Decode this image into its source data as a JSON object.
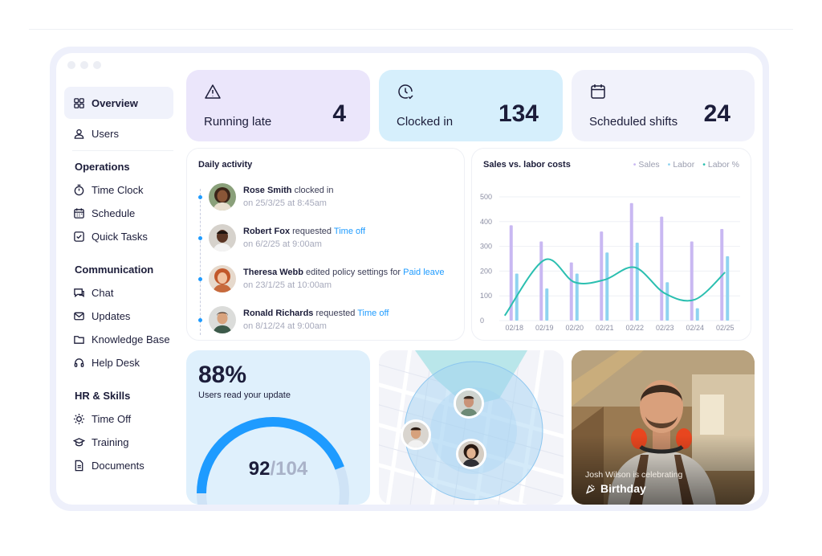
{
  "sidebar": {
    "top_items": [
      {
        "label": "Overview",
        "icon": "grid-icon"
      },
      {
        "label": "Users",
        "icon": "user-icon"
      }
    ],
    "sections": [
      {
        "title": "Operations",
        "items": [
          {
            "label": "Time Clock",
            "icon": "stopwatch-icon"
          },
          {
            "label": "Schedule",
            "icon": "calendar-icon"
          },
          {
            "label": "Quick Tasks",
            "icon": "checkbox-icon"
          }
        ]
      },
      {
        "title": "Communication",
        "items": [
          {
            "label": "Chat",
            "icon": "chat-icon"
          },
          {
            "label": "Updates",
            "icon": "mail-icon"
          },
          {
            "label": "Knowledge Base",
            "icon": "folder-icon"
          },
          {
            "label": "Help Desk",
            "icon": "headset-icon"
          }
        ]
      },
      {
        "title": "HR & Skills",
        "items": [
          {
            "label": "Time Off",
            "icon": "sun-icon"
          },
          {
            "label": "Training",
            "icon": "graduation-cap-icon"
          },
          {
            "label": "Documents",
            "icon": "document-icon"
          }
        ]
      }
    ]
  },
  "stats": [
    {
      "label": "Running late",
      "value": "4",
      "icon": "warning-icon",
      "bg": "#ebe6fb"
    },
    {
      "label": "Clocked in",
      "value": "134",
      "icon": "clock-check-icon",
      "bg": "#d6effc"
    },
    {
      "label": "Scheduled shifts",
      "value": "24",
      "icon": "calendar-icon",
      "bg": "#f1f2fb"
    }
  ],
  "activity": {
    "title": "Daily activity",
    "items": [
      {
        "name": "Rose Smith",
        "verb": " clocked in",
        "link": "",
        "time": "on 25/3/25 at 8:45am"
      },
      {
        "name": "Robert Fox",
        "verb": " requested ",
        "link": "Time off",
        "time": "on 6/2/25 at 9:00am"
      },
      {
        "name": "Theresa Webb",
        "verb": " edited policy settings for ",
        "link": "Paid leave",
        "time": "on 23/1/25 at 10:00am"
      },
      {
        "name": "Ronald Richards",
        "verb": " requested ",
        "link": "Time off",
        "time": "on 8/12/24 at 9:00am"
      }
    ]
  },
  "chart_data": {
    "type": "bar",
    "title": "Sales vs. labor costs",
    "categories": [
      "02/18",
      "02/19",
      "02/20",
      "02/21",
      "02/22",
      "02/23",
      "02/24",
      "02/25"
    ],
    "ylim": [
      0,
      500
    ],
    "yticks": [
      "500",
      "400",
      "300",
      "200",
      "100",
      "0"
    ],
    "series": [
      {
        "name": "Sales",
        "type": "bar",
        "color": "#c9b8f2",
        "values": [
          385,
          320,
          235,
          360,
          475,
          420,
          320,
          370
        ]
      },
      {
        "name": "Labor",
        "type": "bar",
        "color": "#8fd3f0",
        "values": [
          190,
          130,
          190,
          275,
          315,
          155,
          50,
          260
        ]
      },
      {
        "name": "Labor %",
        "type": "line",
        "color": "#2bbfb0",
        "values": [
          20,
          245,
          155,
          165,
          215,
          110,
          85,
          195
        ]
      }
    ],
    "legend": "top-right",
    "grid": true
  },
  "engagement": {
    "percent": "88%",
    "caption": "Users read your update",
    "read": "92",
    "separator": "/",
    "total": "104",
    "progress": 0.885
  },
  "celebration": {
    "caption": "Josh Wilson is celebrating",
    "event": "Birthday",
    "icon": "party-popper-icon"
  }
}
